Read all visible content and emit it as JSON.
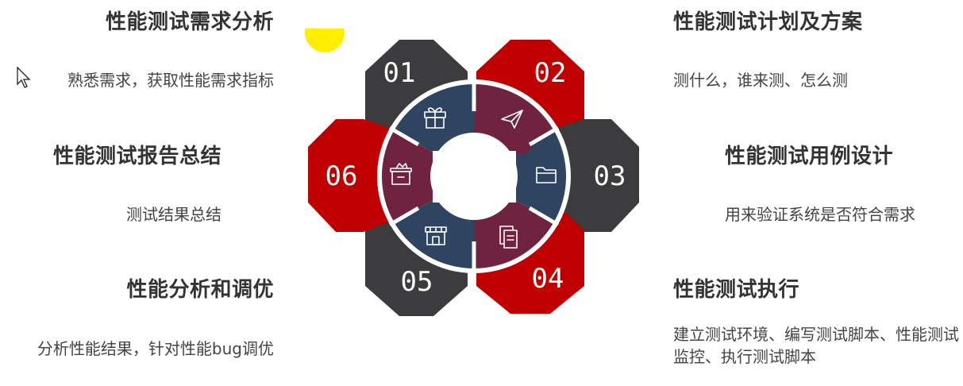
{
  "colors": {
    "red": "#c00000",
    "dark_gray": "#3c3b3d",
    "maroon": "#70233f",
    "navy": "#2e4460",
    "yellow": "#ffee00"
  },
  "steps": [
    {
      "number": "01",
      "title": "性能测试需求分析",
      "description": "熟悉需求，获取性能需求指标",
      "icon": "gift-icon"
    },
    {
      "number": "02",
      "title": "性能测试计划及方案",
      "description": "测什么，谁来测、怎么测",
      "icon": "paper-plane-icon"
    },
    {
      "number": "03",
      "title": "性能测试用例设计",
      "description": "用来验证系统是否符合需求",
      "icon": "folder-icon"
    },
    {
      "number": "04",
      "title": "性能测试执行",
      "description": "建立测试环境、编写测试脚本、性能测试监控、执行测试脚本",
      "icon": "documents-icon"
    },
    {
      "number": "05",
      "title": "性能分析和调优",
      "description": "分析性能结果，针对性能bug调优",
      "icon": "shop-icon"
    },
    {
      "number": "06",
      "title": "性能测试报告总结",
      "description": "测试结果总结",
      "icon": "box-icon"
    }
  ]
}
